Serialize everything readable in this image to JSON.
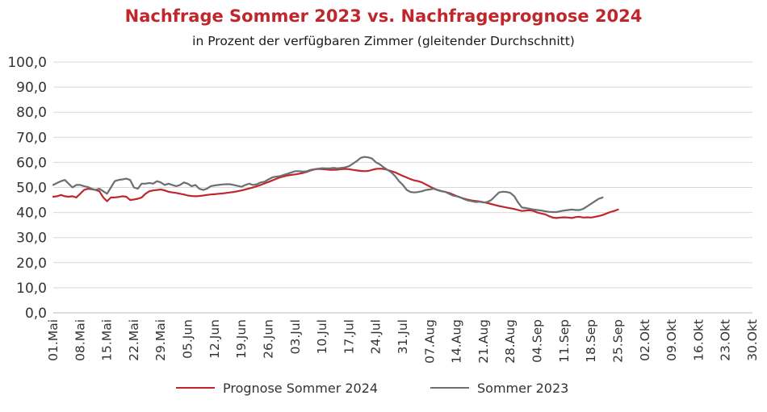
{
  "chart_data": {
    "type": "line",
    "title": "Nachfrage Sommer 2023 vs. Nachfrageprognose 2024",
    "subtitle": "in Prozent der verfügbaren Zimmer (gleitender Durchschnitt)",
    "xlabel": "",
    "ylabel": "",
    "ylim": [
      0,
      100
    ],
    "y_ticks": [
      "0,0",
      "10,0",
      "20,0",
      "30,0",
      "40,0",
      "50,0",
      "60,0",
      "70,0",
      "80,0",
      "90,0",
      "100,0"
    ],
    "x_ticks": [
      "01.Mai",
      "08.Mai",
      "15.Mai",
      "22.Mai",
      "29.Mai",
      "05.Jun",
      "12.Jun",
      "19.Jun",
      "26.Jun",
      "03.Jul",
      "10.Jul",
      "17.Jul",
      "24.Jul",
      "31.Jul",
      "07.Aug",
      "14.Aug",
      "21.Aug",
      "28.Aug",
      "04.Sep",
      "11.Sep",
      "18.Sep",
      "25.Sep",
      "02.Okt",
      "09.Okt",
      "16.Okt",
      "23.Okt",
      "30.Okt"
    ],
    "grid": true,
    "legend": "bottom",
    "series": [
      {
        "name": "Prognose Sommer 2024",
        "color": "#c0272d",
        "points": [
          [
            "01.Mai",
            46.3
          ],
          [
            "02.Mai",
            46.5
          ],
          [
            "03.Mai",
            47.0
          ],
          [
            "04.Mai",
            46.5
          ],
          [
            "05.Mai",
            46.3
          ],
          [
            "06.Mai",
            46.5
          ],
          [
            "07.Mai",
            46.0
          ],
          [
            "08.Mai",
            47.5
          ],
          [
            "09.Mai",
            49.0
          ],
          [
            "10.Mai",
            49.5
          ],
          [
            "11.Mai",
            49.3
          ],
          [
            "12.Mai",
            49.0
          ],
          [
            "13.Mai",
            48.5
          ],
          [
            "14.Mai",
            46.0
          ],
          [
            "15.Mai",
            44.5
          ],
          [
            "16.Mai",
            46.0
          ],
          [
            "17.Mai",
            46.0
          ],
          [
            "18.Mai",
            46.2
          ],
          [
            "19.Mai",
            46.5
          ],
          [
            "20.Mai",
            46.3
          ],
          [
            "21.Mai",
            45.0
          ],
          [
            "22.Mai",
            45.2
          ],
          [
            "23.Mai",
            45.5
          ],
          [
            "24.Mai",
            46.0
          ],
          [
            "25.Mai",
            47.5
          ],
          [
            "26.Mai",
            48.5
          ],
          [
            "27.Mai",
            48.8
          ],
          [
            "28.Mai",
            49.0
          ],
          [
            "29.Mai",
            49.2
          ],
          [
            "30.Mai",
            48.8
          ],
          [
            "31.Mai",
            48.3
          ],
          [
            "01.Jun",
            48.0
          ],
          [
            "02.Jun",
            47.8
          ],
          [
            "03.Jun",
            47.5
          ],
          [
            "04.Jun",
            47.2
          ],
          [
            "05.Jun",
            46.8
          ],
          [
            "06.Jun",
            46.6
          ],
          [
            "07.Jun",
            46.5
          ],
          [
            "08.Jun",
            46.6
          ],
          [
            "09.Jun",
            46.8
          ],
          [
            "10.Jun",
            47.0
          ],
          [
            "11.Jun",
            47.2
          ],
          [
            "12.Jun",
            47.3
          ],
          [
            "13.Jun",
            47.5
          ],
          [
            "14.Jun",
            47.6
          ],
          [
            "15.Jun",
            47.8
          ],
          [
            "16.Jun",
            48.0
          ],
          [
            "17.Jun",
            48.2
          ],
          [
            "18.Jun",
            48.5
          ],
          [
            "19.Jun",
            48.8
          ],
          [
            "20.Jun",
            49.2
          ],
          [
            "21.Jun",
            49.6
          ],
          [
            "22.Jun",
            50.0
          ],
          [
            "23.Jun",
            50.5
          ],
          [
            "24.Jun",
            51.0
          ],
          [
            "25.Jun",
            51.6
          ],
          [
            "26.Jun",
            52.2
          ],
          [
            "27.Jun",
            52.8
          ],
          [
            "28.Jun",
            53.4
          ],
          [
            "29.Jun",
            54.0
          ],
          [
            "30.Jun",
            54.4
          ],
          [
            "01.Jul",
            54.8
          ],
          [
            "02.Jul",
            55.0
          ],
          [
            "03.Jul",
            55.2
          ],
          [
            "04.Jul",
            55.5
          ],
          [
            "05.Jul",
            55.8
          ],
          [
            "06.Jul",
            56.2
          ],
          [
            "07.Jul",
            56.8
          ],
          [
            "08.Jul",
            57.2
          ],
          [
            "09.Jul",
            57.4
          ],
          [
            "10.Jul",
            57.3
          ],
          [
            "11.Jul",
            57.2
          ],
          [
            "12.Jul",
            57.0
          ],
          [
            "13.Jul",
            57.0
          ],
          [
            "14.Jul",
            57.1
          ],
          [
            "15.Jul",
            57.3
          ],
          [
            "16.Jul",
            57.4
          ],
          [
            "17.Jul",
            57.3
          ],
          [
            "18.Jul",
            57.0
          ],
          [
            "19.Jul",
            56.8
          ],
          [
            "20.Jul",
            56.6
          ],
          [
            "21.Jul",
            56.5
          ],
          [
            "22.Jul",
            56.6
          ],
          [
            "23.Jul",
            57.0
          ],
          [
            "24.Jul",
            57.4
          ],
          [
            "25.Jul",
            57.5
          ],
          [
            "26.Jul",
            57.4
          ],
          [
            "27.Jul",
            57.0
          ],
          [
            "28.Jul",
            56.5
          ],
          [
            "29.Jul",
            56.0
          ],
          [
            "30.Jul",
            55.3
          ],
          [
            "31.Jul",
            54.6
          ],
          [
            "01.Aug",
            54.0
          ],
          [
            "02.Aug",
            53.3
          ],
          [
            "03.Aug",
            52.8
          ],
          [
            "04.Aug",
            52.5
          ],
          [
            "05.Aug",
            52.0
          ],
          [
            "06.Aug",
            51.2
          ],
          [
            "07.Aug",
            50.4
          ],
          [
            "08.Aug",
            49.6
          ],
          [
            "09.Aug",
            49.0
          ],
          [
            "10.Aug",
            48.6
          ],
          [
            "11.Aug",
            48.2
          ],
          [
            "12.Aug",
            47.8
          ],
          [
            "13.Aug",
            47.2
          ],
          [
            "14.Aug",
            46.6
          ],
          [
            "15.Aug",
            46.0
          ],
          [
            "16.Aug",
            45.5
          ],
          [
            "17.Aug",
            45.1
          ],
          [
            "18.Aug",
            44.8
          ],
          [
            "19.Aug",
            44.6
          ],
          [
            "20.Aug",
            44.4
          ],
          [
            "21.Aug",
            44.1
          ],
          [
            "22.Aug",
            43.8
          ],
          [
            "23.Aug",
            43.4
          ],
          [
            "24.Aug",
            43.0
          ],
          [
            "25.Aug",
            42.6
          ],
          [
            "26.Aug",
            42.3
          ],
          [
            "27.Aug",
            42.0
          ],
          [
            "28.Aug",
            41.7
          ],
          [
            "29.Aug",
            41.4
          ],
          [
            "30.Aug",
            41.0
          ],
          [
            "31.Aug",
            40.6
          ],
          [
            "01.Sep",
            40.8
          ],
          [
            "02.Sep",
            40.9
          ],
          [
            "03.Sep",
            40.6
          ],
          [
            "04.Sep",
            40.0
          ],
          [
            "05.Sep",
            39.6
          ],
          [
            "06.Sep",
            39.3
          ],
          [
            "07.Sep",
            38.6
          ],
          [
            "08.Sep",
            38.0
          ],
          [
            "09.Sep",
            37.8
          ],
          [
            "10.Sep",
            38.0
          ],
          [
            "11.Sep",
            38.1
          ],
          [
            "12.Sep",
            38.0
          ],
          [
            "13.Sep",
            37.8
          ],
          [
            "14.Sep",
            38.2
          ],
          [
            "15.Sep",
            38.3
          ],
          [
            "16.Sep",
            38.0
          ],
          [
            "17.Sep",
            38.1
          ],
          [
            "18.Sep",
            38.0
          ],
          [
            "19.Sep",
            38.3
          ],
          [
            "20.Sep",
            38.6
          ],
          [
            "21.Sep",
            39.0
          ],
          [
            "22.Sep",
            39.6
          ],
          [
            "23.Sep",
            40.2
          ],
          [
            "24.Sep",
            40.6
          ],
          [
            "25.Sep",
            41.2
          ]
        ]
      },
      {
        "name": "Sommer 2023",
        "color": "#6d6e71",
        "points": [
          [
            "01.Mai",
            51.0
          ],
          [
            "02.Mai",
            51.8
          ],
          [
            "03.Mai",
            52.5
          ],
          [
            "04.Mai",
            53.0
          ],
          [
            "05.Mai",
            51.5
          ],
          [
            "06.Mai",
            50.0
          ],
          [
            "07.Mai",
            51.0
          ],
          [
            "08.Mai",
            51.0
          ],
          [
            "09.Mai",
            50.5
          ],
          [
            "10.Mai",
            50.2
          ],
          [
            "11.Mai",
            49.5
          ],
          [
            "12.Mai",
            49.0
          ],
          [
            "13.Mai",
            49.5
          ],
          [
            "14.Mai",
            48.5
          ],
          [
            "15.Mai",
            47.5
          ],
          [
            "16.Mai",
            50.0
          ],
          [
            "17.Mai",
            52.5
          ],
          [
            "18.Mai",
            53.0
          ],
          [
            "19.Mai",
            53.2
          ],
          [
            "20.Mai",
            53.5
          ],
          [
            "21.Mai",
            53.0
          ],
          [
            "22.Mai",
            50.0
          ],
          [
            "23.Mai",
            49.5
          ],
          [
            "24.Mai",
            51.5
          ],
          [
            "25.Mai",
            51.5
          ],
          [
            "26.Mai",
            51.8
          ],
          [
            "27.Mai",
            51.5
          ],
          [
            "28.Mai",
            52.5
          ],
          [
            "29.Mai",
            52.0
          ],
          [
            "30.Mai",
            51.0
          ],
          [
            "31.Mai",
            51.5
          ],
          [
            "01.Jun",
            51.0
          ],
          [
            "02.Jun",
            50.5
          ],
          [
            "03.Jun",
            51.0
          ],
          [
            "04.Jun",
            52.0
          ],
          [
            "05.Jun",
            51.5
          ],
          [
            "06.Jun",
            50.5
          ],
          [
            "07.Jun",
            51.0
          ],
          [
            "08.Jun",
            49.5
          ],
          [
            "09.Jun",
            49.0
          ],
          [
            "10.Jun",
            49.5
          ],
          [
            "11.Jun",
            50.5
          ],
          [
            "12.Jun",
            50.8
          ],
          [
            "13.Jun",
            51.0
          ],
          [
            "14.Jun",
            51.2
          ],
          [
            "15.Jun",
            51.3
          ],
          [
            "16.Jun",
            51.3
          ],
          [
            "17.Jun",
            51.0
          ],
          [
            "18.Jun",
            50.6
          ],
          [
            "19.Jun",
            50.3
          ],
          [
            "20.Jun",
            51.0
          ],
          [
            "21.Jun",
            51.5
          ],
          [
            "22.Jun",
            51.0
          ],
          [
            "23.Jun",
            51.3
          ],
          [
            "24.Jun",
            52.0
          ],
          [
            "25.Jun",
            52.3
          ],
          [
            "26.Jun",
            53.2
          ],
          [
            "27.Jun",
            54.0
          ],
          [
            "28.Jun",
            54.3
          ],
          [
            "29.Jun",
            54.5
          ],
          [
            "30.Jun",
            55.0
          ],
          [
            "01.Jul",
            55.5
          ],
          [
            "02.Jul",
            56.0
          ],
          [
            "03.Jul",
            56.5
          ],
          [
            "04.Jul",
            56.5
          ],
          [
            "05.Jul",
            56.3
          ],
          [
            "06.Jul",
            56.5
          ],
          [
            "07.Jul",
            57.0
          ],
          [
            "08.Jul",
            57.3
          ],
          [
            "09.Jul",
            57.5
          ],
          [
            "10.Jul",
            57.7
          ],
          [
            "11.Jul",
            57.6
          ],
          [
            "12.Jul",
            57.6
          ],
          [
            "13.Jul",
            57.8
          ],
          [
            "14.Jul",
            57.6
          ],
          [
            "15.Jul",
            57.8
          ],
          [
            "16.Jul",
            58.0
          ],
          [
            "17.Jul",
            58.5
          ],
          [
            "18.Jul",
            59.5
          ],
          [
            "19.Jul",
            60.5
          ],
          [
            "20.Jul",
            61.8
          ],
          [
            "21.Jul",
            62.2
          ],
          [
            "22.Jul",
            62.0
          ],
          [
            "23.Jul",
            61.5
          ],
          [
            "24.Jul",
            60.0
          ],
          [
            "25.Jul",
            59.2
          ],
          [
            "26.Jul",
            58.0
          ],
          [
            "27.Jul",
            57.0
          ],
          [
            "28.Jul",
            56.0
          ],
          [
            "29.Jul",
            54.5
          ],
          [
            "30.Jul",
            52.5
          ],
          [
            "31.Jul",
            51.0
          ],
          [
            "01.Aug",
            49.0
          ],
          [
            "02.Aug",
            48.2
          ],
          [
            "03.Aug",
            48.0
          ],
          [
            "04.Aug",
            48.2
          ],
          [
            "05.Aug",
            48.5
          ],
          [
            "06.Aug",
            49.0
          ],
          [
            "07.Aug",
            49.2
          ],
          [
            "08.Aug",
            49.5
          ],
          [
            "09.Aug",
            49.0
          ],
          [
            "10.Aug",
            48.5
          ],
          [
            "11.Aug",
            48.3
          ],
          [
            "12.Aug",
            47.5
          ],
          [
            "13.Aug",
            46.8
          ],
          [
            "14.Aug",
            46.5
          ],
          [
            "15.Aug",
            46.0
          ],
          [
            "16.Aug",
            45.3
          ],
          [
            "17.Aug",
            44.8
          ],
          [
            "18.Aug",
            44.5
          ],
          [
            "19.Aug",
            44.2
          ],
          [
            "20.Aug",
            44.3
          ],
          [
            "21.Aug",
            44.0
          ],
          [
            "22.Aug",
            44.2
          ],
          [
            "23.Aug",
            45.0
          ],
          [
            "24.Aug",
            46.5
          ],
          [
            "25.Aug",
            48.0
          ],
          [
            "26.Aug",
            48.3
          ],
          [
            "27.Aug",
            48.2
          ],
          [
            "28.Aug",
            47.8
          ],
          [
            "29.Aug",
            46.5
          ],
          [
            "30.Aug",
            44.0
          ],
          [
            "31.Aug",
            42.0
          ],
          [
            "01.Sep",
            41.8
          ],
          [
            "02.Sep",
            41.5
          ],
          [
            "03.Sep",
            41.2
          ],
          [
            "04.Sep",
            41.0
          ],
          [
            "05.Sep",
            40.8
          ],
          [
            "06.Sep",
            40.5
          ],
          [
            "07.Sep",
            40.3
          ],
          [
            "08.Sep",
            40.2
          ],
          [
            "09.Sep",
            40.2
          ],
          [
            "10.Sep",
            40.5
          ],
          [
            "11.Sep",
            40.8
          ],
          [
            "12.Sep",
            41.0
          ],
          [
            "13.Sep",
            41.2
          ],
          [
            "14.Sep",
            41.0
          ],
          [
            "15.Sep",
            41.0
          ],
          [
            "16.Sep",
            41.5
          ],
          [
            "17.Sep",
            42.5
          ],
          [
            "18.Sep",
            43.5
          ],
          [
            "19.Sep",
            44.5
          ],
          [
            "20.Sep",
            45.5
          ],
          [
            "21.Sep",
            46.0
          ]
        ]
      }
    ]
  }
}
